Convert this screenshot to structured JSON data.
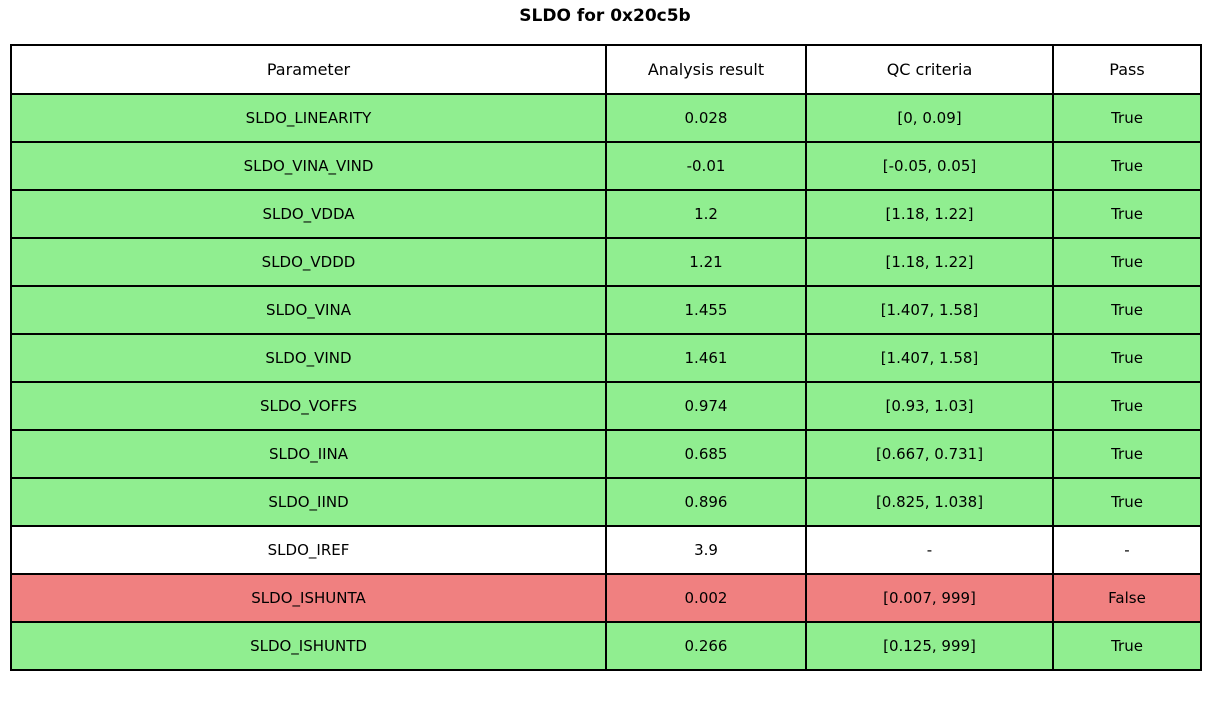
{
  "title": "SLDO for 0x20c5b",
  "colors": {
    "pass_row": "#90EE90",
    "fail_row": "#F08080",
    "neutral_row": "#FFFFFF",
    "border": "#000000",
    "background": "#FFFFFF"
  },
  "chart_data": {
    "type": "table",
    "title": "SLDO for 0x20c5b",
    "headers": [
      "Parameter",
      "Analysis result",
      "QC criteria",
      "Pass"
    ],
    "rows": [
      {
        "parameter": "SLDO_LINEARITY",
        "result": "0.028",
        "criteria": "[0, 0.09]",
        "pass": "True",
        "status": "pass"
      },
      {
        "parameter": "SLDO_VINA_VIND",
        "result": "-0.01",
        "criteria": "[-0.05, 0.05]",
        "pass": "True",
        "status": "pass"
      },
      {
        "parameter": "SLDO_VDDA",
        "result": "1.2",
        "criteria": "[1.18, 1.22]",
        "pass": "True",
        "status": "pass"
      },
      {
        "parameter": "SLDO_VDDD",
        "result": "1.21",
        "criteria": "[1.18, 1.22]",
        "pass": "True",
        "status": "pass"
      },
      {
        "parameter": "SLDO_VINA",
        "result": "1.455",
        "criteria": "[1.407, 1.58]",
        "pass": "True",
        "status": "pass"
      },
      {
        "parameter": "SLDO_VIND",
        "result": "1.461",
        "criteria": "[1.407, 1.58]",
        "pass": "True",
        "status": "pass"
      },
      {
        "parameter": "SLDO_VOFFS",
        "result": "0.974",
        "criteria": "[0.93, 1.03]",
        "pass": "True",
        "status": "pass"
      },
      {
        "parameter": "SLDO_IINA",
        "result": "0.685",
        "criteria": "[0.667, 0.731]",
        "pass": "True",
        "status": "pass"
      },
      {
        "parameter": "SLDO_IIND",
        "result": "0.896",
        "criteria": "[0.825, 1.038]",
        "pass": "True",
        "status": "pass"
      },
      {
        "parameter": "SLDO_IREF",
        "result": "3.9",
        "criteria": "-",
        "pass": "-",
        "status": "neutral"
      },
      {
        "parameter": "SLDO_ISHUNTA",
        "result": "0.002",
        "criteria": "[0.007, 999]",
        "pass": "False",
        "status": "fail"
      },
      {
        "parameter": "SLDO_ISHUNTD",
        "result": "0.266",
        "criteria": "[0.125, 999]",
        "pass": "True",
        "status": "pass"
      }
    ]
  }
}
